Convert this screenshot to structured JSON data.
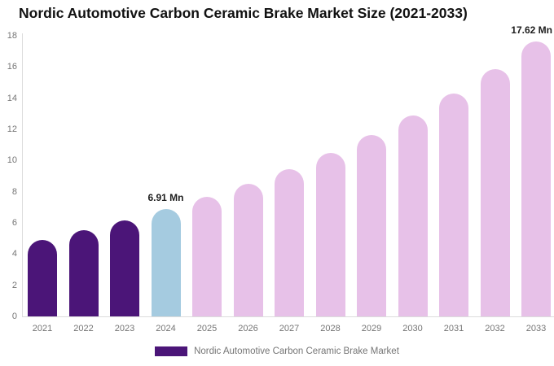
{
  "chart_data": {
    "type": "bar",
    "title": "Nordic Automotive Carbon Ceramic Brake Market Size (2021-2033)",
    "categories": [
      "2021",
      "2022",
      "2023",
      "2024",
      "2025",
      "2026",
      "2027",
      "2028",
      "2029",
      "2030",
      "2031",
      "2032",
      "2033"
    ],
    "values": [
      4.93,
      5.52,
      6.17,
      6.91,
      7.67,
      8.51,
      9.44,
      10.47,
      11.62,
      12.89,
      14.31,
      15.88,
      17.62
    ],
    "unit": "Mn",
    "xlabel": "",
    "ylabel": "",
    "ylim": [
      0,
      18
    ],
    "ytick_step": 2,
    "grid": false,
    "point_colors": [
      "#4B1578",
      "#4B1578",
      "#4B1578",
      "#A5CBE0",
      "#E7C1E8",
      "#E7C1E8",
      "#E7C1E8",
      "#E7C1E8",
      "#E7C1E8",
      "#E7C1E8",
      "#E7C1E8",
      "#E7C1E8",
      "#E7C1E8"
    ],
    "annotations": [
      {
        "category": "2024",
        "text": "6.91 Mn"
      },
      {
        "category": "2033",
        "text": "17.62 Mn"
      }
    ],
    "legend": {
      "position": "bottom",
      "label": "Nordic Automotive Carbon Ceramic Brake Market",
      "swatch_color": "#4B1578"
    },
    "axis_color": "#dcdcdc",
    "tick_label_color": "#757575"
  }
}
